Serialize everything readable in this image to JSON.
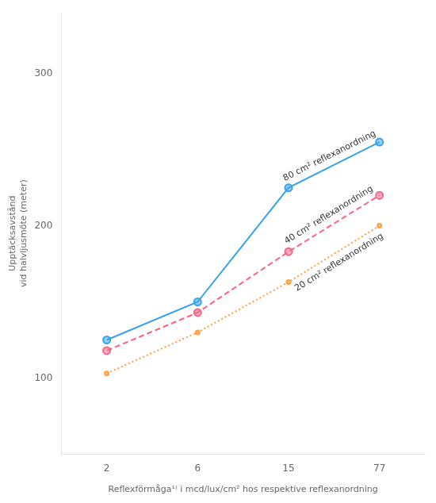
{
  "chart_data": {
    "type": "line",
    "categories": [
      "2",
      "6",
      "15",
      "77"
    ],
    "series": [
      {
        "name": "80 cm² reflexanordning",
        "values": [
          125,
          150,
          225,
          255
        ],
        "line_style": "solid",
        "marker": "circle"
      },
      {
        "name": "40 cm² reflexanordning",
        "values": [
          118,
          143,
          183,
          220
        ],
        "line_style": "dashed",
        "marker": "circle"
      },
      {
        "name": "20 cm² reflexanordning",
        "values": [
          103,
          130,
          163,
          200
        ],
        "line_style": "dotted",
        "marker": "point"
      }
    ],
    "xlabel": "Reflexförmåga¹⁾ i mcd/lux/cm² hos respektive reflexanordning",
    "ylabel": [
      "Upptäcksavstånd",
      "vid halvljusmöte (meter)"
    ],
    "ylim": [
      50,
      340
    ],
    "yticks": [
      100,
      200,
      300
    ],
    "grid": false
  }
}
